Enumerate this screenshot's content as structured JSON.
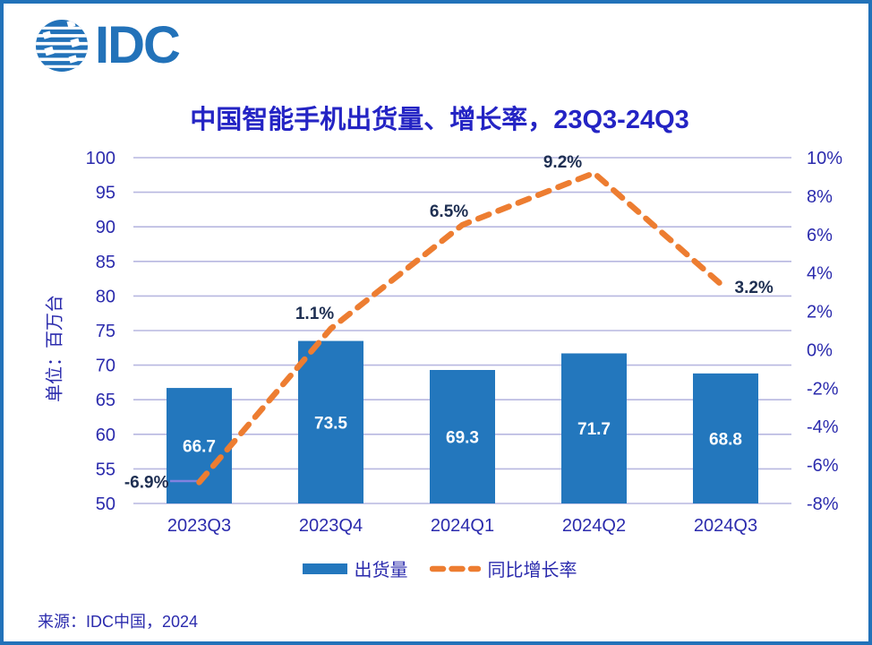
{
  "logo": {
    "text": "IDC"
  },
  "title": "中国智能手机出货量、增长率，23Q3-24Q3",
  "source": "来源：IDC中国，2024",
  "legend": [
    {
      "label": "出货量",
      "swatch": "bar-swatch"
    },
    {
      "label": "同比增长率",
      "swatch": "dashed-line-swatch"
    }
  ],
  "colors": {
    "brand": "#2272B9",
    "border": "#2272B9",
    "bar": "#2377BD",
    "line": "#ED7D31",
    "grid": "#B7B7E0",
    "axis_text": "#2B2BAD",
    "title_text": "#2424C4",
    "point_label": "#1E2F52",
    "bar_label": "#FFFFFF",
    "leader": "#8282E0"
  },
  "chart_data": {
    "type": "bar",
    "title": "中国智能手机出货量、增长率，23Q3-24Q3",
    "categories": [
      "2023Q3",
      "2023Q4",
      "2024Q1",
      "2024Q2",
      "2024Q3"
    ],
    "series": [
      {
        "name": "出货量",
        "type": "bar",
        "axis": "left",
        "values": [
          66.7,
          73.5,
          69.3,
          71.7,
          68.8
        ],
        "labels": [
          "66.7",
          "73.5",
          "69.3",
          "71.7",
          "68.8"
        ]
      },
      {
        "name": "同比增长率",
        "type": "dashed-line",
        "axis": "right",
        "values": [
          -6.9,
          1.1,
          6.5,
          9.2,
          3.2
        ],
        "labels": [
          "-6.9%",
          "1.1%",
          "6.5%",
          "9.2%",
          "3.2%"
        ]
      }
    ],
    "left_axis": {
      "label": "单位：百万台",
      "min": 50,
      "max": 100,
      "step": 5,
      "ticks": [
        "100",
        "95",
        "90",
        "85",
        "80",
        "75",
        "70",
        "65",
        "60",
        "55",
        "50"
      ]
    },
    "right_axis": {
      "min": -8,
      "max": 10,
      "step": 2,
      "ticks": [
        "10%",
        "8%",
        "6%",
        "4%",
        "2%",
        "0%",
        "-2%",
        "-4%",
        "-6%",
        "-8%"
      ]
    },
    "grid": true,
    "legend_position": "bottom"
  }
}
